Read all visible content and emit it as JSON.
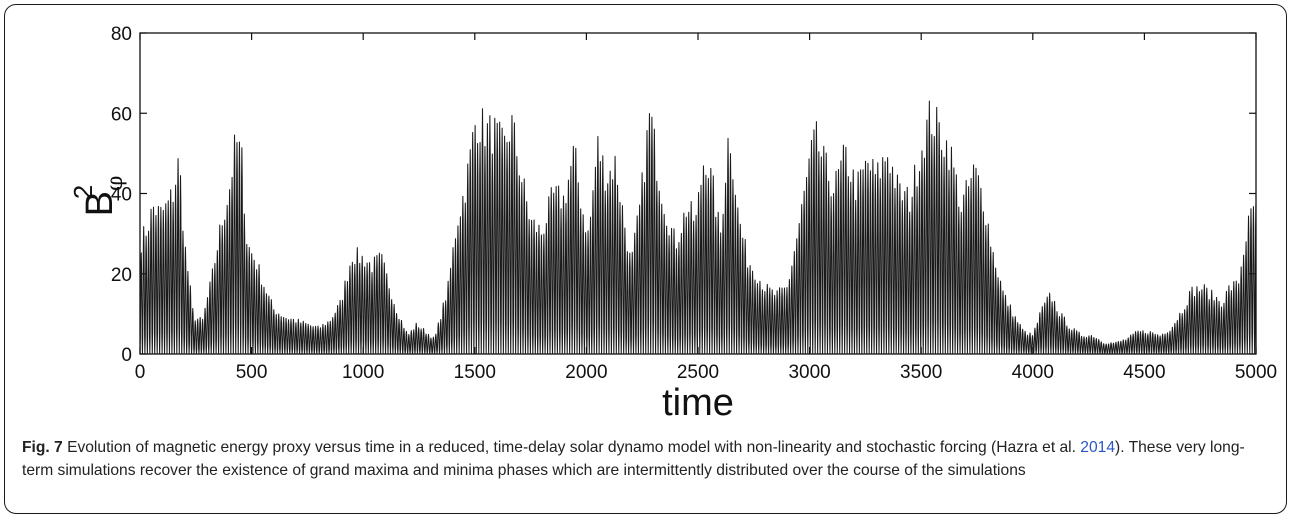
{
  "chart_data": {
    "type": "line",
    "title": "",
    "xlabel": "time",
    "ylabel": {
      "base": "B",
      "superscript": "2",
      "subscript": "φ"
    },
    "xlim": [
      0,
      5000
    ],
    "ylim": [
      0,
      80
    ],
    "xticks": [
      0,
      500,
      1000,
      1500,
      2000,
      2500,
      3000,
      3500,
      4000,
      4500,
      5000
    ],
    "yticks": [
      0,
      20,
      40,
      60,
      80
    ],
    "grid": false,
    "line_color": "#1a1a1a",
    "series": [
      {
        "cycle_period": 11,
        "envelope": [
          [
            0,
            30
          ],
          [
            30,
            34
          ],
          [
            60,
            40
          ],
          [
            90,
            38
          ],
          [
            120,
            40
          ],
          [
            150,
            44
          ],
          [
            175,
            53
          ],
          [
            200,
            30
          ],
          [
            240,
            10
          ],
          [
            280,
            9
          ],
          [
            320,
            20
          ],
          [
            360,
            34
          ],
          [
            400,
            45
          ],
          [
            430,
            58
          ],
          [
            455,
            54
          ],
          [
            480,
            30
          ],
          [
            520,
            25
          ],
          [
            560,
            18
          ],
          [
            600,
            12
          ],
          [
            650,
            10
          ],
          [
            700,
            9
          ],
          [
            750,
            8
          ],
          [
            800,
            7
          ],
          [
            850,
            9
          ],
          [
            900,
            14
          ],
          [
            950,
            27
          ],
          [
            1000,
            26
          ],
          [
            1040,
            24
          ],
          [
            1080,
            26
          ],
          [
            1100,
            22
          ],
          [
            1150,
            12
          ],
          [
            1200,
            5
          ],
          [
            1240,
            8
          ],
          [
            1280,
            6
          ],
          [
            1320,
            4
          ],
          [
            1380,
            18
          ],
          [
            1420,
            36
          ],
          [
            1460,
            46
          ],
          [
            1505,
            64
          ],
          [
            1550,
            61
          ],
          [
            1590,
            60
          ],
          [
            1630,
            56
          ],
          [
            1665,
            63
          ],
          [
            1710,
            48
          ],
          [
            1750,
            36
          ],
          [
            1800,
            33
          ],
          [
            1850,
            43
          ],
          [
            1900,
            42
          ],
          [
            1945,
            55
          ],
          [
            1980,
            40
          ],
          [
            2010,
            32
          ],
          [
            2050,
            57
          ],
          [
            2090,
            48
          ],
          [
            2130,
            52
          ],
          [
            2170,
            36
          ],
          [
            2200,
            24
          ],
          [
            2240,
            40
          ],
          [
            2285,
            66
          ],
          [
            2320,
            50
          ],
          [
            2360,
            38
          ],
          [
            2400,
            30
          ],
          [
            2450,
            40
          ],
          [
            2490,
            36
          ],
          [
            2530,
            55
          ],
          [
            2565,
            46
          ],
          [
            2600,
            32
          ],
          [
            2640,
            62
          ],
          [
            2680,
            38
          ],
          [
            2720,
            26
          ],
          [
            2760,
            22
          ],
          [
            2800,
            18
          ],
          [
            2850,
            16
          ],
          [
            2900,
            18
          ],
          [
            2950,
            34
          ],
          [
            3000,
            52
          ],
          [
            3025,
            59
          ],
          [
            3070,
            51
          ],
          [
            3110,
            45
          ],
          [
            3160,
            54
          ],
          [
            3210,
            45
          ],
          [
            3260,
            52
          ],
          [
            3300,
            48
          ],
          [
            3350,
            55
          ],
          [
            3400,
            44
          ],
          [
            3450,
            42
          ],
          [
            3500,
            56
          ],
          [
            3540,
            65
          ],
          [
            3580,
            61
          ],
          [
            3630,
            55
          ],
          [
            3680,
            40
          ],
          [
            3740,
            50
          ],
          [
            3780,
            42
          ],
          [
            3820,
            28
          ],
          [
            3870,
            16
          ],
          [
            3920,
            10
          ],
          [
            3960,
            6
          ],
          [
            4000,
            5
          ],
          [
            4040,
            12
          ],
          [
            4080,
            16
          ],
          [
            4120,
            11
          ],
          [
            4170,
            7
          ],
          [
            4220,
            5
          ],
          [
            4270,
            5
          ],
          [
            4320,
            3
          ],
          [
            4370,
            3
          ],
          [
            4420,
            4
          ],
          [
            4470,
            6
          ],
          [
            4520,
            6
          ],
          [
            4570,
            5
          ],
          [
            4620,
            7
          ],
          [
            4670,
            12
          ],
          [
            4710,
            17
          ],
          [
            4760,
            18
          ],
          [
            4800,
            16
          ],
          [
            4850,
            14
          ],
          [
            4880,
            18
          ],
          [
            4920,
            19
          ],
          [
            4960,
            34
          ],
          [
            5000,
            41
          ]
        ]
      }
    ]
  },
  "caption": {
    "fig_label": "Fig. 7",
    "text_before_cite": " Evolution of magnetic energy proxy versus time in a reduced, time-delay solar dynamo model with non-linearity and stochastic forcing (",
    "cite": "Hazra et al. ",
    "cite_year": "2014",
    "text_after_cite": "). These very long-term simulations recover the existence of grand maxima and minima phases which are intermittently distributed over the course of the simulations"
  }
}
